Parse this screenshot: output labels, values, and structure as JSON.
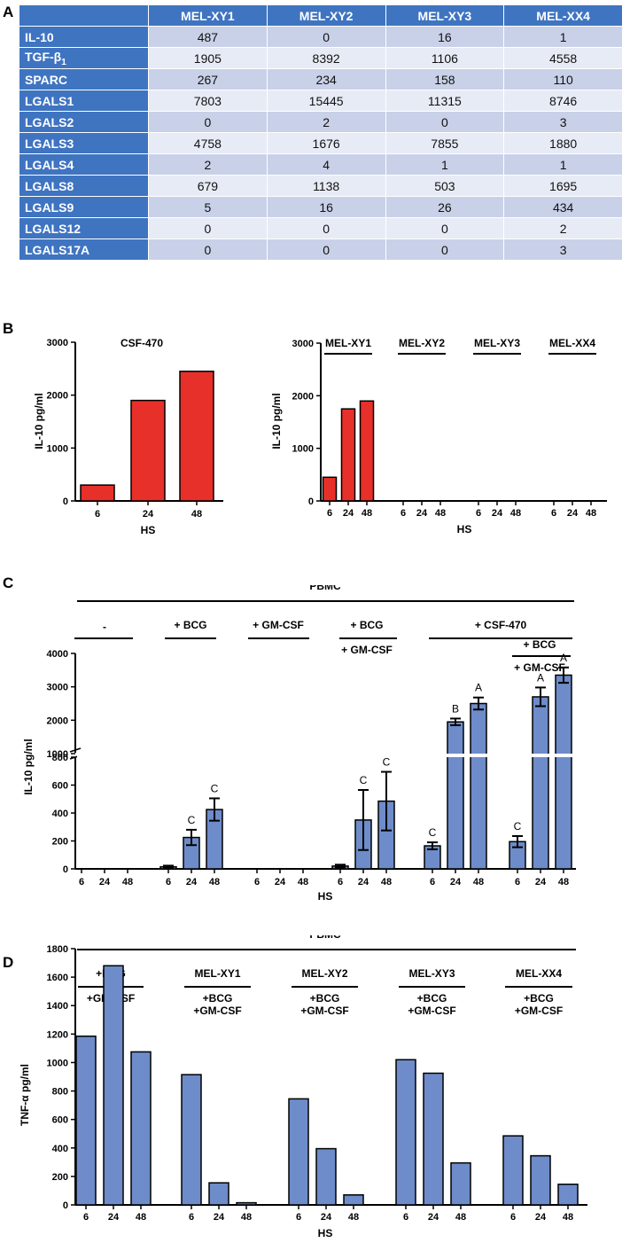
{
  "panel_labels": {
    "a": "A",
    "b": "B",
    "c": "C",
    "d": "D"
  },
  "colors": {
    "header": "#3f74c1",
    "row_dark": "#c9d1e8",
    "row_light": "#e7ebf5",
    "red_bar": "#e8302a",
    "blue_bar": "#6d8cc9"
  },
  "table": {
    "columns": [
      "MEL-XY1",
      "MEL-XY2",
      "MEL-XY3",
      "MEL-XX4"
    ],
    "rows": [
      {
        "label": "IL-10",
        "values": [
          "487",
          "0",
          "16",
          "1"
        ]
      },
      {
        "label": "TGF-β",
        "sub": "1",
        "values": [
          "1905",
          "8392",
          "1106",
          "4558"
        ]
      },
      {
        "label": "SPARC",
        "values": [
          "267",
          "234",
          "158",
          "110"
        ]
      },
      {
        "label": "LGALS1",
        "values": [
          "7803",
          "15445",
          "11315",
          "8746"
        ]
      },
      {
        "label": "LGALS2",
        "values": [
          "0",
          "2",
          "0",
          "3"
        ]
      },
      {
        "label": "LGALS3",
        "values": [
          "4758",
          "1676",
          "7855",
          "1880"
        ]
      },
      {
        "label": "LGALS4",
        "values": [
          "2",
          "4",
          "1",
          "1"
        ]
      },
      {
        "label": "LGALS8",
        "values": [
          "679",
          "1138",
          "503",
          "1695"
        ]
      },
      {
        "label": "LGALS9",
        "values": [
          "5",
          "16",
          "26",
          "434"
        ]
      },
      {
        "label": "LGALS12",
        "values": [
          "0",
          "0",
          "0",
          "2"
        ]
      },
      {
        "label": "LGALS17A",
        "values": [
          "0",
          "0",
          "0",
          "3"
        ]
      }
    ]
  },
  "chart_data": [
    {
      "id": "B-left",
      "type": "bar",
      "title": "CSF-470",
      "ylabel": "IL-10 pg/ml",
      "xlabel": "HS",
      "categories": [
        "6",
        "24",
        "48"
      ],
      "values": [
        300,
        1900,
        2450
      ],
      "ylim": [
        0,
        3000
      ],
      "yticks": [
        "0",
        "1000",
        "2000",
        "3000"
      ]
    },
    {
      "id": "B-right",
      "type": "bar",
      "ylabel": "IL-10 pg/ml",
      "xlabel": "HS",
      "yticks": [
        "0",
        "1000",
        "2000",
        "3000"
      ],
      "ylim": [
        0,
        3000
      ],
      "groups": [
        {
          "name": "MEL-XY1",
          "categories": [
            "6",
            "24",
            "48"
          ],
          "values": [
            450,
            1750,
            1900
          ]
        },
        {
          "name": "MEL-XY2",
          "categories": [
            "6",
            "24",
            "48"
          ],
          "values": [
            0,
            0,
            0
          ]
        },
        {
          "name": "MEL-XY3",
          "categories": [
            "6",
            "24",
            "48"
          ],
          "values": [
            0,
            0,
            0
          ]
        },
        {
          "name": "MEL-XX4",
          "categories": [
            "6",
            "24",
            "48"
          ],
          "values": [
            0,
            0,
            0
          ]
        }
      ]
    },
    {
      "id": "C",
      "type": "bar",
      "header": "PBMC",
      "ylabel": "IL-10 pg/ml",
      "xlabel": "HS",
      "yticks_lower": [
        "0",
        "200",
        "400",
        "600",
        "800"
      ],
      "yticks_upper": [
        "1000",
        "2000",
        "3000",
        "4000"
      ],
      "ylim": [
        0,
        4000
      ],
      "groups": [
        {
          "label": "-",
          "label2": "",
          "categories": [
            "6",
            "24",
            "48"
          ],
          "values": [
            0,
            0,
            0
          ],
          "errors": [
            0,
            0,
            0
          ],
          "letters": [
            "",
            "",
            ""
          ]
        },
        {
          "label": "+ BCG",
          "label2": "",
          "categories": [
            "6",
            "24",
            "48"
          ],
          "values": [
            15,
            225,
            425
          ],
          "errors": [
            8,
            55,
            80
          ],
          "letters": [
            "",
            "C",
            "C"
          ]
        },
        {
          "label": "+ GM-CSF",
          "label2": "",
          "categories": [
            "6",
            "24",
            "48"
          ],
          "values": [
            0,
            0,
            0
          ],
          "errors": [
            0,
            0,
            0
          ],
          "letters": [
            "",
            "",
            ""
          ]
        },
        {
          "label": "+ BCG",
          "label2": "+ GM-CSF",
          "categories": [
            "6",
            "24",
            "48"
          ],
          "values": [
            20,
            350,
            485
          ],
          "errors": [
            10,
            215,
            210
          ],
          "letters": [
            "",
            "C",
            "C"
          ]
        },
        {
          "label": "+ CSF-470",
          "label2": "",
          "categories": [
            "6",
            "24",
            "48"
          ],
          "values": [
            165,
            1950,
            2500
          ],
          "errors": [
            25,
            100,
            180
          ],
          "letters": [
            "C",
            "B",
            "A"
          ]
        },
        {
          "label": "+ BCG",
          "label2": "+ GM-CSF",
          "categories": [
            "6",
            "24",
            "48"
          ],
          "values": [
            195,
            2700,
            3350
          ],
          "errors": [
            40,
            280,
            230
          ],
          "letters": [
            "C",
            "A",
            "A"
          ]
        }
      ]
    },
    {
      "id": "D",
      "type": "bar",
      "header": "PBMC",
      "ylabel": "TNF-α pg/ml",
      "xlabel": "HS",
      "yticks": [
        "0",
        "200",
        "400",
        "600",
        "800",
        "1000",
        "1200",
        "1400",
        "1600",
        "1800"
      ],
      "ylim": [
        0,
        1800
      ],
      "groups": [
        {
          "label": "+BCG",
          "label2": "+GM-CSF",
          "categories": [
            "6",
            "24",
            "48"
          ],
          "values": [
            1185,
            1680,
            1075
          ]
        },
        {
          "label": "MEL-XY1",
          "label2": "+BCG",
          "label3": "+GM-CSF",
          "categories": [
            "6",
            "24",
            "48"
          ],
          "values": [
            915,
            155,
            15
          ]
        },
        {
          "label": "MEL-XY2",
          "label2": "+BCG",
          "label3": "+GM-CSF",
          "categories": [
            "6",
            "24",
            "48"
          ],
          "values": [
            745,
            395,
            70
          ]
        },
        {
          "label": "MEL-XY3",
          "label2": "+BCG",
          "label3": "+GM-CSF",
          "categories": [
            "6",
            "24",
            "48"
          ],
          "values": [
            1020,
            925,
            295
          ]
        },
        {
          "label": "MEL-XX4",
          "label2": "+BCG",
          "label3": "+GM-CSF",
          "categories": [
            "6",
            "24",
            "48"
          ],
          "values": [
            485,
            345,
            145
          ]
        }
      ]
    }
  ]
}
